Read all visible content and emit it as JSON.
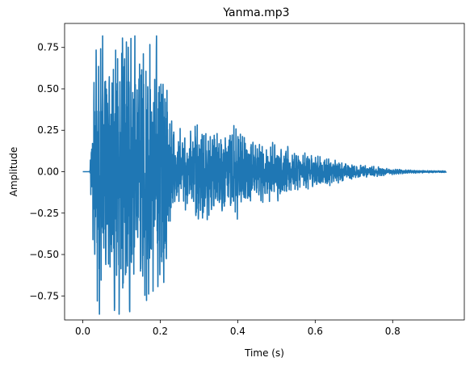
{
  "chart_data": {
    "type": "line",
    "title": "Yanma.mp3",
    "xlabel": "Time (s)",
    "ylabel": "Amplitude",
    "xlim": [
      -0.047,
      0.985
    ],
    "ylim": [
      -0.895,
      0.895
    ],
    "grid": false,
    "line_color": "#1f77b4",
    "x_ticks": [
      0.0,
      0.2,
      0.4,
      0.6,
      0.8
    ],
    "x_tick_labels": [
      "0.0",
      "0.2",
      "0.4",
      "0.6",
      "0.8"
    ],
    "y_ticks": [
      -0.75,
      -0.5,
      -0.25,
      0.0,
      0.25,
      0.5,
      0.75
    ],
    "y_tick_labels": [
      "−0.75",
      "−0.50",
      "−0.25",
      "0.00",
      "0.25",
      "0.50",
      "0.75"
    ],
    "series": [
      {
        "duration": 0.938,
        "silence_end": 0.018,
        "envelope": [
          [
            0.0,
            0.0
          ],
          [
            0.018,
            0.0
          ],
          [
            0.022,
            0.2
          ],
          [
            0.03,
            0.62
          ],
          [
            0.04,
            0.78
          ],
          [
            0.06,
            0.72
          ],
          [
            0.1,
            0.82
          ],
          [
            0.14,
            0.76
          ],
          [
            0.18,
            0.7
          ],
          [
            0.21,
            0.62
          ],
          [
            0.225,
            0.36
          ],
          [
            0.24,
            0.22
          ],
          [
            0.27,
            0.2
          ],
          [
            0.3,
            0.3
          ],
          [
            0.35,
            0.22
          ],
          [
            0.4,
            0.24
          ],
          [
            0.45,
            0.16
          ],
          [
            0.5,
            0.15
          ],
          [
            0.55,
            0.1
          ],
          [
            0.6,
            0.09
          ],
          [
            0.65,
            0.06
          ],
          [
            0.7,
            0.04
          ],
          [
            0.75,
            0.03
          ],
          [
            0.8,
            0.015
          ],
          [
            0.85,
            0.008
          ],
          [
            0.938,
            0.004
          ]
        ],
        "peak_max": 0.82,
        "peak_min": -0.86
      }
    ]
  }
}
